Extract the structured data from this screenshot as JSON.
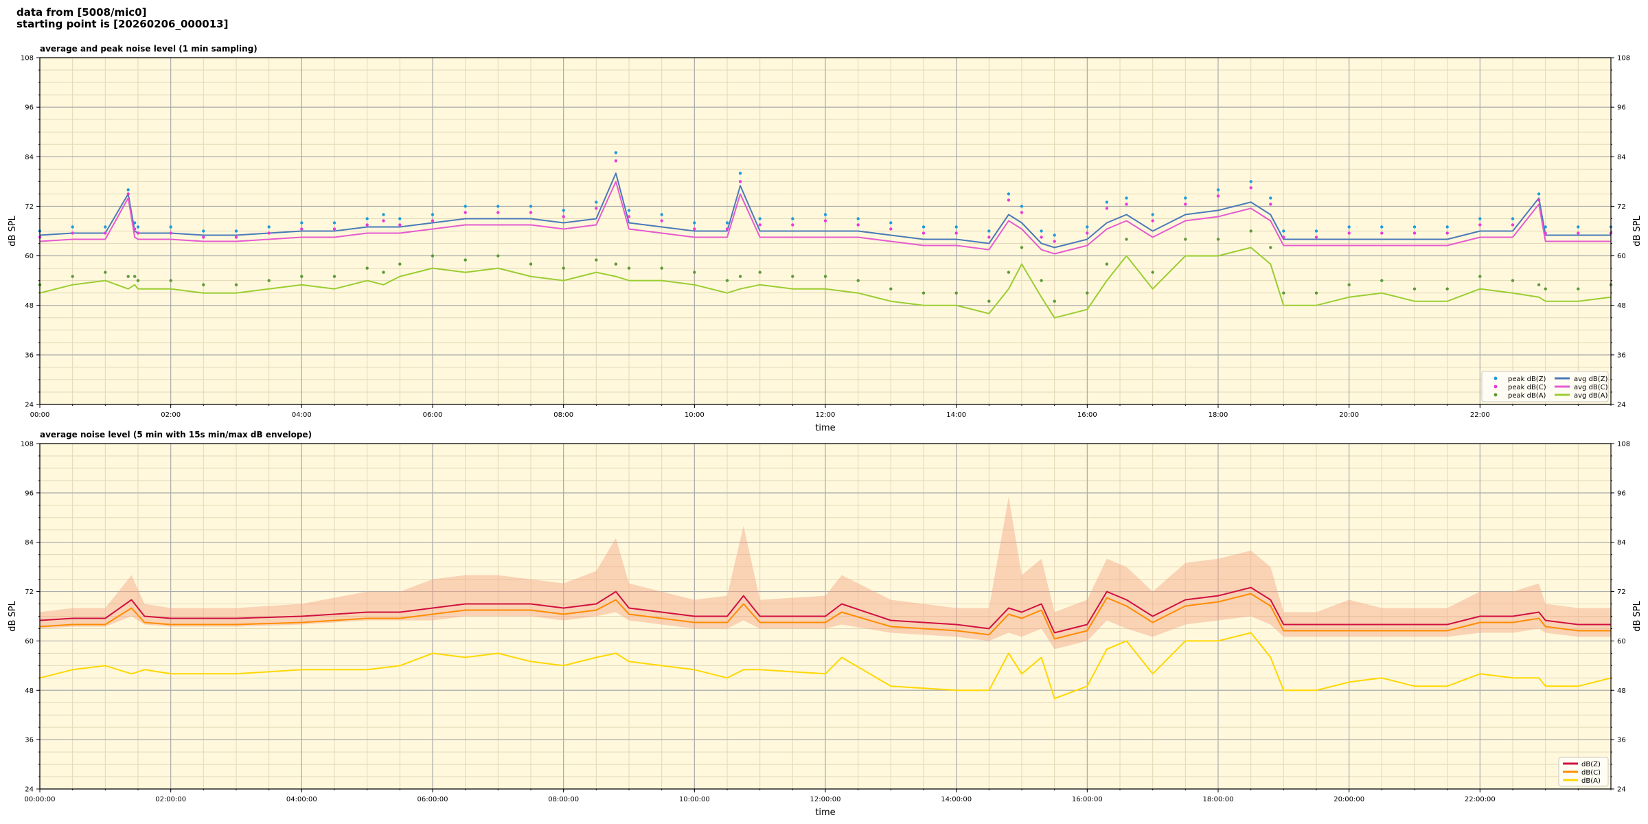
{
  "header": {
    "line1": "data from [5008/mic0]",
    "line2": "starting point is [20260206_000013]"
  },
  "colors": {
    "plot_bg": "#fff8dc",
    "grid_major": "#aaaaaa",
    "grid_minor": "#e3d9b8",
    "peak_z": "#1f9bdc",
    "peak_c": "#e83ad8",
    "peak_a": "#5c9a3a",
    "avg_z": "#4a7ab8",
    "avg_c": "#e65ad0",
    "avg_a": "#9acd32",
    "z": "#d01040",
    "c": "#ff8c00",
    "a": "#ffd700",
    "envelope": "#f4a582"
  },
  "chart_data": [
    {
      "type": "line",
      "title": "average and peak noise level (1 min sampling)",
      "xlabel": "time",
      "ylabel": "dB SPL",
      "ylim": [
        24,
        108
      ],
      "xlim_hours": [
        0,
        24
      ],
      "grid": true,
      "legend_position": "lower-right",
      "yticks": [
        "24",
        "36",
        "48",
        "60",
        "72",
        "84",
        "96",
        "108"
      ],
      "xticks": [
        "00:00",
        "02:00",
        "04:00",
        "06:00",
        "08:00",
        "10:00",
        "12:00",
        "14:00",
        "16:00",
        "18:00",
        "20:00",
        "22:00"
      ],
      "legend": [
        "peak dB(Z)",
        "peak dB(C)",
        "peak dB(A)",
        "avg dB(Z)",
        "avg dB(C)",
        "avg dB(A)"
      ],
      "x_hours": [
        0,
        0.5,
        1,
        1.35,
        1.45,
        1.5,
        2,
        2.5,
        3,
        3.5,
        4,
        4.5,
        5,
        5.25,
        5.5,
        6,
        6.5,
        7,
        7.5,
        8,
        8.5,
        8.8,
        9,
        9.5,
        10,
        10.5,
        10.7,
        11,
        11.5,
        12,
        12.5,
        13,
        13.5,
        14,
        14.5,
        14.8,
        15,
        15.3,
        15.5,
        16,
        16.3,
        16.6,
        17,
        17.5,
        18,
        18.5,
        18.8,
        19,
        19.5,
        20,
        20.5,
        21,
        21.5,
        22,
        22.5,
        22.9,
        23,
        23.5,
        24
      ],
      "series": [
        {
          "name": "avg dB(Z)",
          "values": [
            65,
            65.5,
            65.5,
            75,
            66,
            65.5,
            65.5,
            65,
            65,
            65.5,
            66,
            66,
            67,
            67,
            67,
            68,
            69,
            69,
            69,
            68,
            69,
            80,
            68,
            67,
            66,
            66,
            77,
            66,
            66,
            66,
            66,
            65,
            64,
            64,
            63,
            70,
            68,
            63,
            62,
            64,
            68,
            70,
            66,
            70,
            71,
            73,
            70,
            64,
            64,
            64,
            64,
            64,
            64,
            66,
            66,
            74,
            65,
            65,
            65
          ]
        },
        {
          "name": "avg dB(C)",
          "values": [
            63.5,
            64,
            64,
            74,
            64.5,
            64,
            64,
            63.5,
            63.5,
            64,
            64.5,
            64.5,
            65.5,
            65.5,
            65.5,
            66.5,
            67.5,
            67.5,
            67.5,
            66.5,
            67.5,
            78,
            66.5,
            65.5,
            64.5,
            64.5,
            75,
            64.5,
            64.5,
            64.5,
            64.5,
            63.5,
            62.5,
            62.5,
            61.5,
            68.5,
            66.5,
            61.5,
            60.5,
            62.5,
            66.5,
            68.5,
            64.5,
            68.5,
            69.5,
            71.5,
            68.5,
            62.5,
            62.5,
            62.5,
            62.5,
            62.5,
            62.5,
            64.5,
            64.5,
            72.5,
            63.5,
            63.5,
            63.5
          ]
        },
        {
          "name": "avg dB(A)",
          "values": [
            51,
            53,
            54,
            52,
            53,
            52,
            52,
            51,
            51,
            52,
            53,
            52,
            54,
            53,
            55,
            57,
            56,
            57,
            55,
            54,
            56,
            55,
            54,
            54,
            53,
            51,
            52,
            53,
            52,
            52,
            51,
            49,
            48,
            48,
            46,
            52,
            58,
            50,
            45,
            47,
            54,
            60,
            52,
            60,
            60,
            62,
            58,
            48,
            48,
            50,
            51,
            49,
            49,
            52,
            51,
            50,
            49,
            49,
            50
          ]
        },
        {
          "name": "peak dB(Z)",
          "values": [
            66,
            67,
            67,
            76,
            68,
            67,
            67,
            66,
            66,
            67,
            68,
            68,
            69,
            70,
            69,
            70,
            72,
            72,
            72,
            71,
            73,
            85,
            71,
            70,
            68,
            68,
            80,
            69,
            69,
            70,
            69,
            68,
            67,
            67,
            66,
            75,
            72,
            66,
            65,
            67,
            73,
            74,
            70,
            74,
            76,
            78,
            74,
            66,
            66,
            67,
            67,
            67,
            67,
            69,
            69,
            75,
            67,
            67,
            67
          ]
        },
        {
          "name": "peak dB(C)",
          "values": [
            64.5,
            65.5,
            65.5,
            75,
            66.5,
            65.5,
            65.5,
            64.5,
            64.5,
            65.5,
            66.5,
            66.5,
            67.5,
            68.5,
            67.5,
            68.5,
            70.5,
            70.5,
            70.5,
            69.5,
            71.5,
            83,
            69.5,
            68.5,
            66.5,
            66.5,
            78,
            67.5,
            67.5,
            68.5,
            67.5,
            66.5,
            65.5,
            65.5,
            64.5,
            73.5,
            70.5,
            64.5,
            63.5,
            65.5,
            71.5,
            72.5,
            68.5,
            72.5,
            74.5,
            76.5,
            72.5,
            64.5,
            64.5,
            65.5,
            65.5,
            65.5,
            65.5,
            67.5,
            67.5,
            73.5,
            65.5,
            65.5,
            65.5
          ]
        },
        {
          "name": "peak dB(A)",
          "values": [
            53,
            55,
            56,
            55,
            55,
            54,
            54,
            53,
            53,
            54,
            55,
            55,
            57,
            56,
            58,
            60,
            59,
            60,
            58,
            57,
            59,
            58,
            57,
            57,
            56,
            54,
            55,
            56,
            55,
            55,
            54,
            52,
            51,
            51,
            49,
            56,
            62,
            54,
            49,
            51,
            58,
            64,
            56,
            64,
            64,
            66,
            62,
            51,
            51,
            53,
            54,
            52,
            52,
            55,
            54,
            53,
            52,
            52,
            53
          ]
        }
      ]
    },
    {
      "type": "area",
      "title": "average noise level (5 min with 15s min/max dB envelope)",
      "xlabel": "time",
      "ylabel": "dB SPL",
      "ylim": [
        24,
        108
      ],
      "xlim_hours": [
        0,
        24
      ],
      "grid": true,
      "legend_position": "lower-right",
      "yticks": [
        "24",
        "36",
        "48",
        "60",
        "72",
        "84",
        "96",
        "108"
      ],
      "xticks": [
        "00:00:00",
        "02:00:00",
        "04:00:00",
        "06:00:00",
        "08:00:00",
        "10:00:00",
        "12:00:00",
        "14:00:00",
        "16:00:00",
        "18:00:00",
        "20:00:00",
        "22:00:00"
      ],
      "legend": [
        "dB(Z)",
        "dB(C)",
        "dB(A)"
      ],
      "x_hours": [
        0,
        0.5,
        1,
        1.4,
        1.6,
        2,
        3,
        4,
        5,
        5.5,
        6,
        6.5,
        7,
        7.5,
        8,
        8.5,
        8.8,
        9,
        9.5,
        10,
        10.5,
        10.75,
        11,
        12,
        12.25,
        13,
        14,
        14.5,
        14.8,
        15,
        15.3,
        15.5,
        16,
        16.3,
        16.6,
        17,
        17.5,
        18,
        18.5,
        18.8,
        19,
        19.5,
        20,
        20.5,
        21,
        21.5,
        22,
        22.5,
        22.9,
        23,
        23.5,
        24
      ],
      "series": [
        {
          "name": "dB(Z)",
          "values": [
            65,
            65.5,
            65.5,
            70,
            66,
            65.5,
            65.5,
            66,
            67,
            67,
            68,
            69,
            69,
            69,
            68,
            69,
            72,
            68,
            67,
            66,
            66,
            71,
            66,
            66,
            69,
            65,
            64,
            63,
            68,
            67,
            69,
            62,
            64,
            72,
            70,
            66,
            70,
            71,
            73,
            70,
            64,
            64,
            64,
            64,
            64,
            64,
            66,
            66,
            67,
            65,
            64,
            64
          ]
        },
        {
          "name": "dB(C)",
          "values": [
            63.5,
            64,
            64,
            68,
            64.5,
            64,
            64,
            64.5,
            65.5,
            65.5,
            66.5,
            67.5,
            67.5,
            67.5,
            66.5,
            67.5,
            70,
            66.5,
            65.5,
            64.5,
            64.5,
            69,
            64.5,
            64.5,
            67,
            63.5,
            62.5,
            61.5,
            66.5,
            65.5,
            67.5,
            60.5,
            62.5,
            70.5,
            68.5,
            64.5,
            68.5,
            69.5,
            71.5,
            68.5,
            62.5,
            62.5,
            62.5,
            62.5,
            62.5,
            62.5,
            64.5,
            64.5,
            65.5,
            63.5,
            62.5,
            62.5
          ]
        },
        {
          "name": "dB(A)",
          "values": [
            51,
            53,
            54,
            52,
            53,
            52,
            52,
            53,
            53,
            54,
            57,
            56,
            57,
            55,
            54,
            56,
            57,
            55,
            54,
            53,
            51,
            53,
            53,
            52,
            56,
            49,
            48,
            48,
            57,
            52,
            56,
            46,
            49,
            58,
            60,
            52,
            60,
            60,
            62,
            56,
            48,
            48,
            50,
            51,
            49,
            49,
            52,
            51,
            51,
            49,
            49,
            51
          ]
        }
      ],
      "envelope": {
        "lower": [
          63,
          63.5,
          63.5,
          66,
          64,
          63.5,
          63.5,
          64,
          65,
          65,
          65,
          66,
          66,
          66,
          65,
          66,
          67,
          65,
          64,
          63,
          63,
          65,
          63,
          63,
          64,
          62,
          61,
          60,
          62,
          61,
          63,
          58,
          60,
          65,
          63,
          61,
          64,
          65,
          66,
          64,
          61,
          61,
          61,
          61,
          61,
          61,
          62,
          62,
          63,
          62,
          61,
          61
        ],
        "upper": [
          67,
          68,
          68,
          76,
          69,
          68,
          68,
          69,
          72,
          72,
          75,
          76,
          76,
          75,
          74,
          77,
          85,
          74,
          72,
          70,
          71,
          88,
          70,
          71,
          76,
          70,
          68,
          68,
          95,
          76,
          80,
          67,
          70,
          80,
          78,
          72,
          79,
          80,
          82,
          78,
          67,
          67,
          70,
          68,
          68,
          68,
          72,
          72,
          74,
          69,
          68,
          68
        ]
      }
    }
  ]
}
